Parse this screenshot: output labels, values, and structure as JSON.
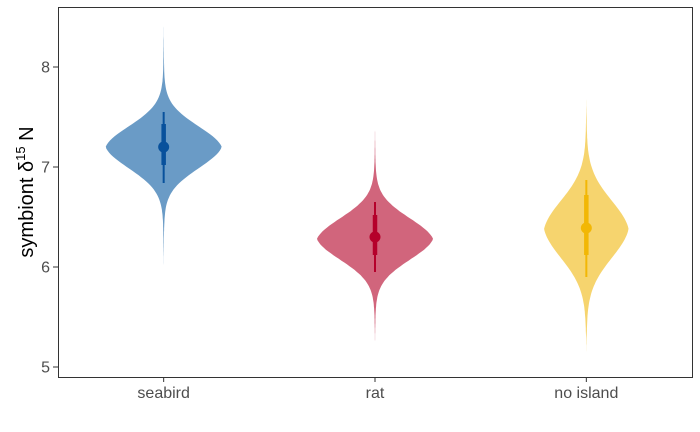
{
  "chart_data": {
    "type": "violin",
    "title": "",
    "xlabel": "",
    "ylabel": {
      "prefix": "symbiont ",
      "delta": "δ",
      "superscript": "15",
      "suffix": " N"
    },
    "ylim": [
      4.9,
      8.6
    ],
    "yticks": [
      5,
      6,
      7,
      8
    ],
    "grid": false,
    "categories": [
      "seabird",
      "rat",
      "no island"
    ],
    "groups": [
      {
        "category": "seabird",
        "color": "#08519c",
        "fill": "#6a9bc6",
        "median": 7.2,
        "inner_interval": [
          7.02,
          7.43
        ],
        "outer_interval": [
          6.84,
          7.55
        ],
        "range": [
          6.0,
          8.45
        ],
        "mode": 7.2,
        "max_half_width": 0.55
      },
      {
        "category": "rat",
        "color": "#b5002b",
        "fill": "#d1657c",
        "median": 6.3,
        "inner_interval": [
          6.12,
          6.52
        ],
        "outer_interval": [
          5.95,
          6.65
        ],
        "range": [
          5.22,
          7.42
        ],
        "mode": 6.28,
        "max_half_width": 0.55
      },
      {
        "category": "no island",
        "color": "#f2b705",
        "fill": "#f6d46e",
        "median": 6.39,
        "inner_interval": [
          6.12,
          6.72
        ],
        "outer_interval": [
          5.9,
          6.87
        ],
        "range": [
          5.15,
          7.7
        ],
        "mode": 6.38,
        "max_half_width": 0.4
      }
    ]
  }
}
